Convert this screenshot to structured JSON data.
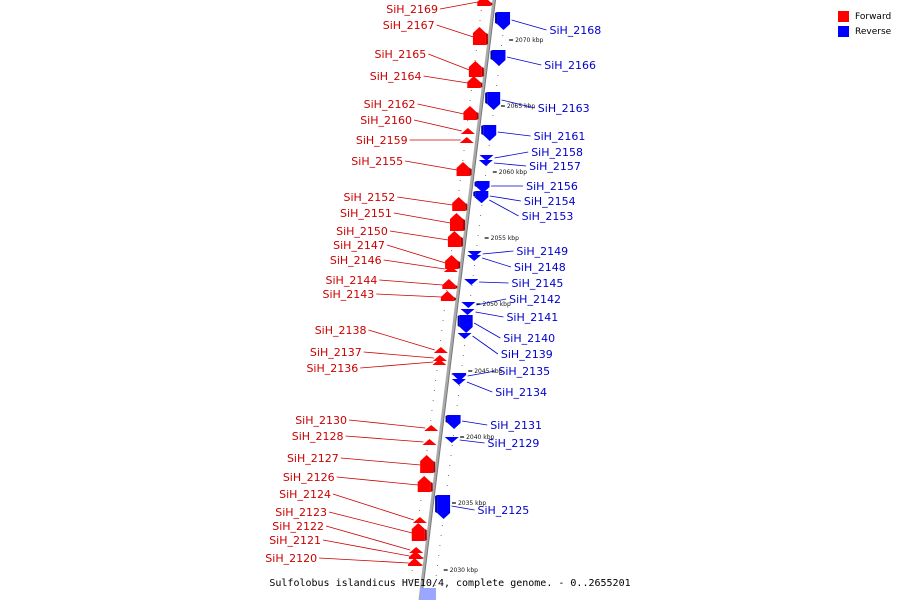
{
  "caption": "Sulfolobus islandicus HVE10/4, complete genome. - 0..2655201",
  "colors": {
    "forward": "#ff0000",
    "reverse": "#0000ff",
    "forward_text": "#cc0000",
    "reverse_text": "#0000cc",
    "axis": "#999999"
  },
  "legend": [
    {
      "label": "Forward",
      "color": "#ff0000"
    },
    {
      "label": "Reverse",
      "color": "#0000ff"
    }
  ],
  "kbp_marks": [
    "2070 kbp",
    "2065 kbp",
    "2060 kbp",
    "2055 kbp",
    "2050 kbp",
    "2045 kbp",
    "2040 kbp",
    "2035 kbp",
    "2030 kbp"
  ],
  "forward_genes": [
    "SiH_2169",
    "SiH_2167",
    "SiH_2165",
    "SiH_2164",
    "SiH_2162",
    "SiH_2160",
    "SiH_2159",
    "SiH_2155",
    "SiH_2152",
    "SiH_2151",
    "SiH_2150",
    "SiH_2147",
    "SiH_2146",
    "SiH_2144",
    "SiH_2143",
    "SiH_2138",
    "SiH_2137",
    "SiH_2136",
    "SiH_2130",
    "SiH_2128",
    "SiH_2127",
    "SiH_2126",
    "SiH_2124",
    "SiH_2123",
    "SiH_2122",
    "SiH_2121",
    "SiH_2120"
  ],
  "reverse_genes": [
    "SiH_2168",
    "SiH_2166",
    "SiH_2163",
    "SiH_2161",
    "SiH_2158",
    "SiH_2157",
    "SiH_2156",
    "SiH_2154",
    "SiH_2153",
    "SiH_2149",
    "SiH_2148",
    "SiH_2145",
    "SiH_2142",
    "SiH_2141",
    "SiH_2140",
    "SiH_2139",
    "SiH_2135",
    "SiH_2134",
    "SiH_2131",
    "SiH_2129",
    "SiH_2125"
  ]
}
